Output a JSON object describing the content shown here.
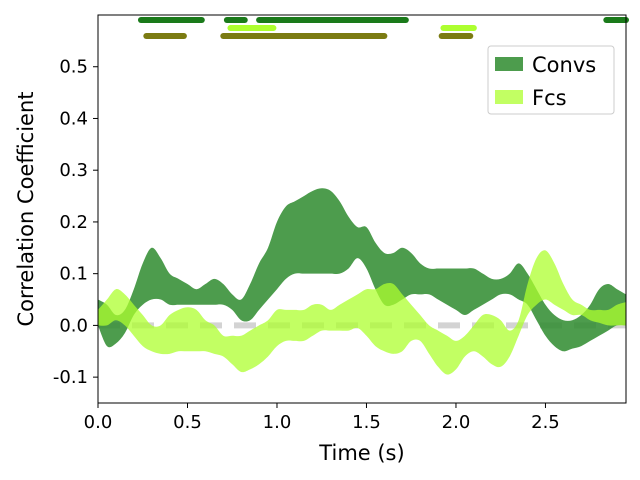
{
  "chart_data": {
    "type": "area",
    "title": "",
    "xlabel": "Time (s)",
    "ylabel": "Correlation Coefficient",
    "xlim": [
      0.0,
      2.95
    ],
    "ylim": [
      -0.15,
      0.6
    ],
    "x_ticks": [
      {
        "value": 0.0,
        "label": "0.0"
      },
      {
        "value": 0.5,
        "label": "0.5"
      },
      {
        "value": 1.0,
        "label": "1.0"
      },
      {
        "value": 1.5,
        "label": "1.5"
      },
      {
        "value": 2.0,
        "label": "2.0"
      },
      {
        "value": 2.5,
        "label": "2.5"
      }
    ],
    "y_ticks": [
      {
        "value": -0.1,
        "label": "-0.1"
      },
      {
        "value": 0.0,
        "label": "0.0"
      },
      {
        "value": 0.1,
        "label": "0.1"
      },
      {
        "value": 0.2,
        "label": "0.2"
      },
      {
        "value": 0.3,
        "label": "0.3"
      },
      {
        "value": 0.4,
        "label": "0.4"
      },
      {
        "value": 0.5,
        "label": "0.5"
      }
    ],
    "grid": false,
    "legend_position": "top-right",
    "baseline": {
      "y": 0.0,
      "color": "#d3d3d3",
      "style": "dashed"
    },
    "series": [
      {
        "name": "Convs",
        "color": "#2e8b2e",
        "opacity": 0.85,
        "x": [
          0.0,
          0.05,
          0.1,
          0.15,
          0.2,
          0.25,
          0.3,
          0.35,
          0.4,
          0.45,
          0.5,
          0.55,
          0.6,
          0.65,
          0.7,
          0.75,
          0.8,
          0.85,
          0.9,
          0.95,
          1.0,
          1.05,
          1.1,
          1.15,
          1.2,
          1.25,
          1.3,
          1.35,
          1.4,
          1.45,
          1.5,
          1.55,
          1.6,
          1.65,
          1.7,
          1.75,
          1.8,
          1.85,
          1.9,
          1.95,
          2.0,
          2.05,
          2.1,
          2.15,
          2.2,
          2.25,
          2.3,
          2.35,
          2.4,
          2.45,
          2.5,
          2.55,
          2.6,
          2.65,
          2.7,
          2.75,
          2.8,
          2.85,
          2.9,
          2.95
        ],
        "upper": [
          0.05,
          0.04,
          0.02,
          0.03,
          0.07,
          0.12,
          0.15,
          0.13,
          0.1,
          0.09,
          0.08,
          0.07,
          0.08,
          0.09,
          0.08,
          0.06,
          0.05,
          0.08,
          0.12,
          0.15,
          0.2,
          0.23,
          0.24,
          0.25,
          0.26,
          0.265,
          0.26,
          0.24,
          0.21,
          0.19,
          0.19,
          0.16,
          0.14,
          0.14,
          0.15,
          0.14,
          0.12,
          0.11,
          0.11,
          0.11,
          0.11,
          0.11,
          0.11,
          0.1,
          0.09,
          0.09,
          0.1,
          0.12,
          0.1,
          0.07,
          0.04,
          0.02,
          0.01,
          0.01,
          0.02,
          0.04,
          0.07,
          0.08,
          0.07,
          0.06
        ],
        "lower": [
          0.0,
          -0.04,
          -0.035,
          -0.015,
          0.02,
          0.04,
          0.05,
          0.05,
          0.04,
          0.04,
          0.04,
          0.04,
          0.04,
          0.04,
          0.04,
          0.03,
          0.01,
          0.01,
          0.03,
          0.05,
          0.07,
          0.09,
          0.1,
          0.1,
          0.1,
          0.1,
          0.1,
          0.1,
          0.11,
          0.13,
          0.11,
          0.07,
          0.04,
          0.04,
          0.05,
          0.06,
          0.06,
          0.06,
          0.05,
          0.04,
          0.03,
          0.02,
          0.03,
          0.04,
          0.05,
          0.06,
          0.06,
          0.05,
          0.04,
          0.01,
          -0.02,
          -0.04,
          -0.05,
          -0.045,
          -0.04,
          -0.03,
          -0.02,
          -0.01,
          0.0,
          0.0
        ]
      },
      {
        "name": "Fcs",
        "color": "#adff2f",
        "opacity": 0.75,
        "x": [
          0.0,
          0.05,
          0.1,
          0.15,
          0.2,
          0.25,
          0.3,
          0.35,
          0.4,
          0.45,
          0.5,
          0.55,
          0.6,
          0.65,
          0.7,
          0.75,
          0.8,
          0.85,
          0.9,
          0.95,
          1.0,
          1.05,
          1.1,
          1.15,
          1.2,
          1.25,
          1.3,
          1.35,
          1.4,
          1.45,
          1.5,
          1.55,
          1.6,
          1.65,
          1.7,
          1.75,
          1.8,
          1.85,
          1.9,
          1.95,
          2.0,
          2.05,
          2.1,
          2.15,
          2.2,
          2.25,
          2.3,
          2.35,
          2.4,
          2.45,
          2.5,
          2.55,
          2.6,
          2.65,
          2.7,
          2.75,
          2.8,
          2.85,
          2.9,
          2.95
        ],
        "upper": [
          0.03,
          0.05,
          0.07,
          0.06,
          0.04,
          0.02,
          0.0,
          0.0,
          0.02,
          0.03,
          0.035,
          0.03,
          0.01,
          0.0,
          -0.02,
          -0.02,
          -0.02,
          -0.01,
          0.0,
          0.01,
          0.03,
          0.03,
          0.03,
          0.03,
          0.04,
          0.04,
          0.03,
          0.04,
          0.05,
          0.06,
          0.07,
          0.07,
          0.08,
          0.08,
          0.06,
          0.04,
          0.02,
          0.0,
          -0.01,
          -0.02,
          -0.03,
          -0.02,
          0.0,
          0.02,
          0.02,
          0.01,
          -0.01,
          0.01,
          0.08,
          0.13,
          0.145,
          0.12,
          0.08,
          0.05,
          0.04,
          0.03,
          0.03,
          0.03,
          0.04,
          0.045
        ],
        "lower": [
          0.0,
          0.0,
          0.01,
          0.0,
          -0.02,
          -0.04,
          -0.05,
          -0.055,
          -0.055,
          -0.05,
          -0.05,
          -0.05,
          -0.05,
          -0.055,
          -0.06,
          -0.075,
          -0.09,
          -0.085,
          -0.075,
          -0.06,
          -0.04,
          -0.03,
          -0.03,
          -0.03,
          -0.02,
          -0.01,
          -0.01,
          -0.01,
          -0.01,
          -0.005,
          -0.02,
          -0.04,
          -0.05,
          -0.055,
          -0.05,
          -0.03,
          -0.03,
          -0.055,
          -0.08,
          -0.095,
          -0.085,
          -0.06,
          -0.05,
          -0.06,
          -0.075,
          -0.08,
          -0.06,
          -0.02,
          0.02,
          0.04,
          0.05,
          0.04,
          0.03,
          0.02,
          0.02,
          0.01,
          0.005,
          0.0,
          0.0,
          0.0
        ]
      }
    ],
    "significance_bars": [
      {
        "row": 1,
        "color": "#1a7a1a",
        "start": 0.24,
        "end": 0.58
      },
      {
        "row": 1,
        "color": "#1a7a1a",
        "start": 0.72,
        "end": 0.82
      },
      {
        "row": 1,
        "color": "#1a7a1a",
        "start": 0.9,
        "end": 1.72
      },
      {
        "row": 1,
        "color": "#1a7a1a",
        "start": 2.84,
        "end": 2.95
      },
      {
        "row": 2,
        "color": "#adff2f",
        "start": 0.74,
        "end": 0.98
      },
      {
        "row": 2,
        "color": "#adff2f",
        "start": 1.93,
        "end": 2.1
      },
      {
        "row": 3,
        "color": "#7b7b12",
        "start": 0.27,
        "end": 0.48
      },
      {
        "row": 3,
        "color": "#7b7b12",
        "start": 0.7,
        "end": 1.6
      },
      {
        "row": 3,
        "color": "#7b7b12",
        "start": 1.92,
        "end": 2.08
      }
    ]
  }
}
